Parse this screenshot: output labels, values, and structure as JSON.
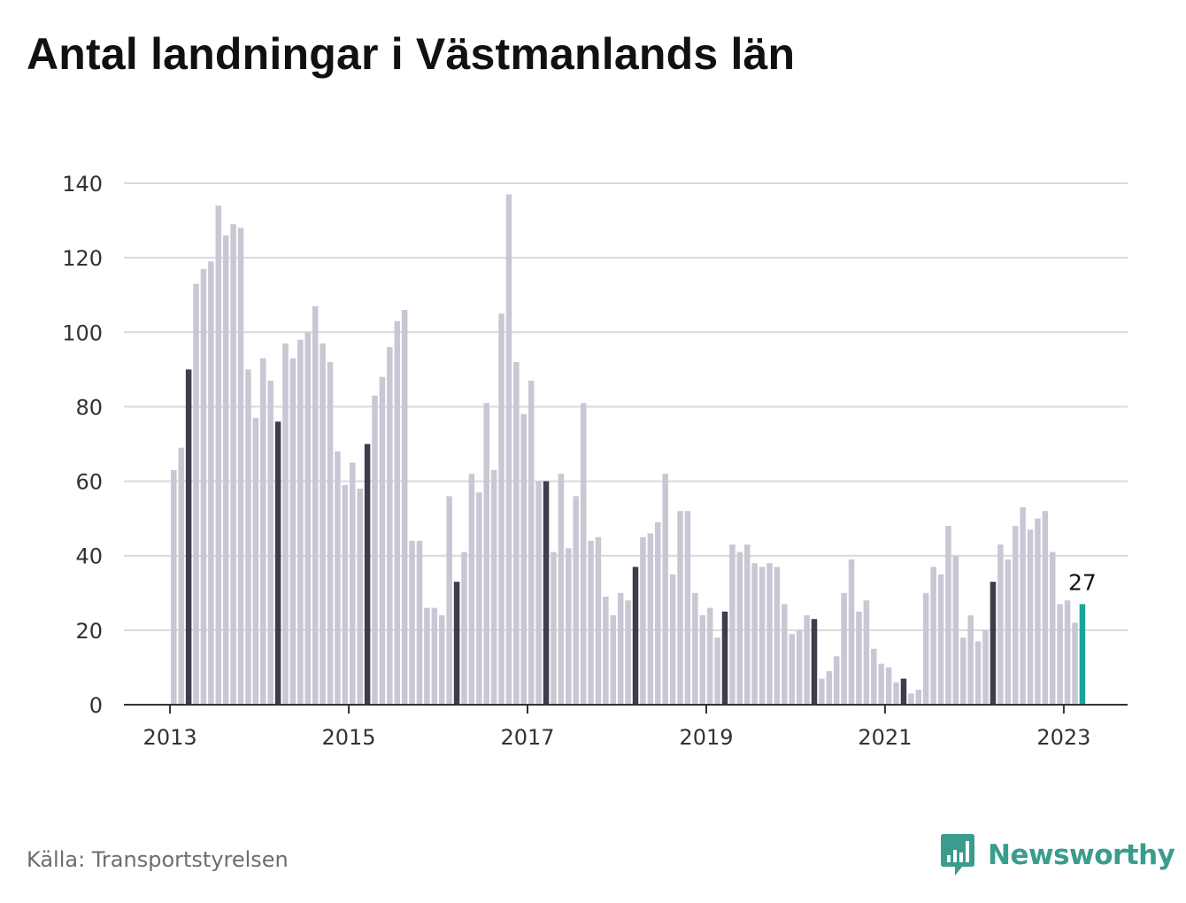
{
  "title": "Antal landningar i Västmanlands län",
  "source": "Källa: Transportstyrelsen",
  "brand": {
    "name": "Newsworthy",
    "icon": "newsworthy-logo-icon"
  },
  "colors": {
    "bar": "#c8c8d4",
    "highlight_month": "#3f3d4c",
    "latest": "#1aa596",
    "grid": "#d9d9d9",
    "axis": "#333333"
  },
  "chart_data": {
    "type": "bar",
    "title": "Antal landningar i Västmanlands län",
    "xlabel": "",
    "ylabel": "",
    "ylim": [
      0,
      140
    ],
    "yticks": [
      0,
      20,
      40,
      60,
      80,
      100,
      120,
      140
    ],
    "xticks": [
      "2013",
      "2015",
      "2017",
      "2019",
      "2021",
      "2023"
    ],
    "grid": true,
    "legend": "none",
    "start": "2013-01",
    "latest_label": "27",
    "values": [
      63,
      69,
      90,
      113,
      117,
      119,
      134,
      126,
      129,
      128,
      90,
      77,
      93,
      87,
      76,
      97,
      93,
      98,
      100,
      107,
      97,
      92,
      68,
      59,
      65,
      58,
      70,
      83,
      88,
      96,
      103,
      106,
      44,
      44,
      26,
      26,
      24,
      56,
      33,
      41,
      62,
      57,
      81,
      63,
      105,
      137,
      92,
      78,
      87,
      60,
      60,
      41,
      62,
      42,
      56,
      81,
      44,
      45,
      29,
      24,
      30,
      28,
      37,
      45,
      46,
      49,
      62,
      35,
      52,
      52,
      30,
      24,
      26,
      18,
      25,
      43,
      41,
      43,
      38,
      37,
      38,
      37,
      27,
      19,
      20,
      24,
      23,
      7,
      9,
      13,
      30,
      39,
      25,
      28,
      15,
      11,
      10,
      6,
      7,
      3,
      4,
      30,
      37,
      35,
      48,
      40,
      18,
      24,
      17,
      20,
      33,
      43,
      39,
      48,
      53,
      47,
      50,
      52,
      41,
      27,
      28,
      22,
      27
    ]
  }
}
